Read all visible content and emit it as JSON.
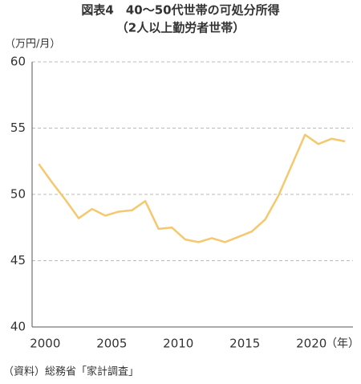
{
  "chart_data": {
    "type": "line",
    "title": "図表4　40～50代世帯の可処分所得",
    "subtitle": "（2人以上勤労者世帯）",
    "y_label": "（万円/月）",
    "x_label": "（年）",
    "source": "（資料）総務省「家計調査」",
    "x": [
      2000,
      2001,
      2002,
      2003,
      2004,
      2005,
      2006,
      2007,
      2008,
      2009,
      2010,
      2011,
      2012,
      2013,
      2014,
      2015,
      2016,
      2017,
      2018,
      2019,
      2020,
      2021,
      2022,
      2023
    ],
    "series": [
      {
        "name": "可処分所得",
        "color": "#f5c86e",
        "values": [
          52.3,
          50.9,
          49.6,
          48.2,
          48.9,
          48.4,
          48.7,
          48.8,
          49.5,
          47.4,
          47.5,
          46.6,
          46.4,
          46.7,
          46.4,
          46.8,
          47.2,
          48.1,
          49.9,
          52.2,
          54.5,
          53.8,
          54.2,
          54.0
        ]
      }
    ],
    "xlim": [
      1999.5,
      2023.6
    ],
    "xticks": [
      2000,
      2005,
      2010,
      2015,
      2020
    ],
    "ylim": [
      40,
      60
    ],
    "yticks": [
      40,
      45,
      50,
      55,
      60
    ],
    "grid": true
  }
}
